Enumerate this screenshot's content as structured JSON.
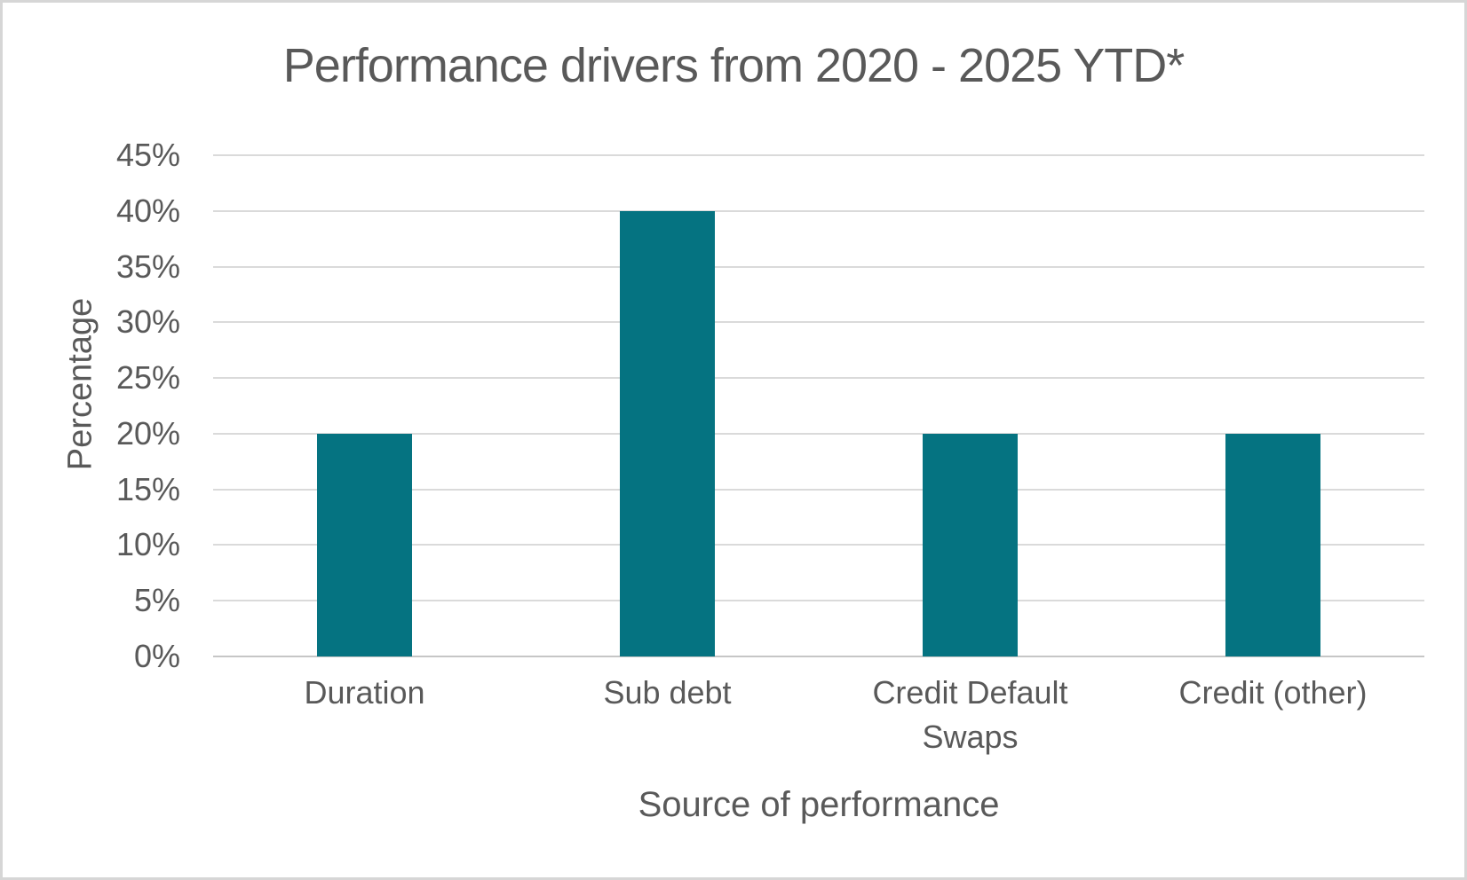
{
  "window": {
    "background_color": "#ffffff",
    "border_color": "#d6d6d6",
    "text_color": "#595959"
  },
  "chart_data": {
    "type": "bar",
    "title": "Performance drivers from 2020 - 2025 YTD*",
    "categories": [
      "Duration",
      "Sub debt",
      "Credit Default Swaps",
      "Credit (other)"
    ],
    "values": [
      20,
      40,
      20,
      20
    ],
    "xlabel": "Source of performance",
    "ylabel": "Percentage",
    "ylim": [
      0,
      45
    ],
    "yticks": {
      "values": [
        0,
        5,
        10,
        15,
        20,
        25,
        30,
        35,
        40,
        45
      ],
      "labels": [
        "0%",
        "5%",
        "10%",
        "15%",
        "20%",
        "25%",
        "30%",
        "35%",
        "40%",
        "45%"
      ]
    },
    "grid": true,
    "legend": "none",
    "bar_color": "#057381",
    "gridline_color": "#dadada",
    "axis_line_color": "#c6c6c6",
    "label_color": "#595959"
  }
}
